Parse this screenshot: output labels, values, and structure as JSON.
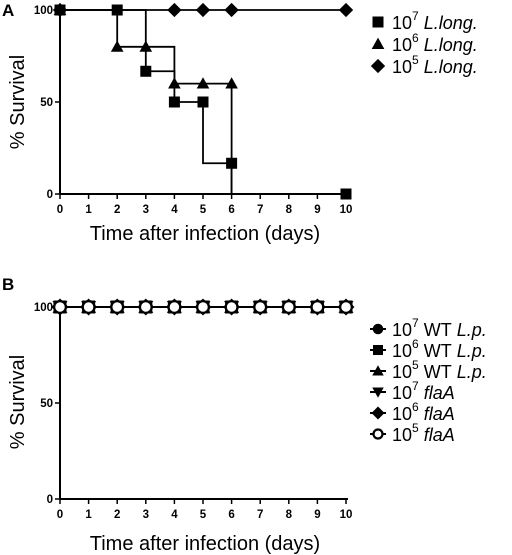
{
  "chart_data": [
    {
      "panel": "A",
      "type": "line",
      "xlabel": "Time after infection (days)",
      "ylabel": "% Survival",
      "xlim": [
        0,
        10
      ],
      "ylim": [
        0,
        100
      ],
      "xticks": [
        0,
        1,
        2,
        3,
        4,
        5,
        6,
        7,
        8,
        9,
        10
      ],
      "yticks": [
        0,
        50,
        100
      ],
      "step": true,
      "legend_position": "right",
      "series": [
        {
          "name": "10^7 L.long.",
          "legend": {
            "base": "10",
            "exp": "7",
            "plain": "",
            "italic": "L.long."
          },
          "marker": "square",
          "x": [
            0,
            2,
            3,
            4,
            5,
            6,
            10
          ],
          "y": [
            100,
            100,
            66.7,
            50,
            50,
            16.7,
            0
          ],
          "steps": [
            [
              0,
              100
            ],
            [
              2,
              100
            ],
            [
              3,
              66.7
            ],
            [
              4,
              50
            ],
            [
              5,
              16.7
            ],
            [
              6,
              0
            ],
            [
              10,
              0
            ]
          ]
        },
        {
          "name": "10^6 L.long.",
          "legend": {
            "base": "10",
            "exp": "6",
            "plain": "",
            "italic": "L.long."
          },
          "marker": "triangle-up",
          "x": [
            0,
            2,
            3,
            4,
            5,
            6
          ],
          "y": [
            100,
            80,
            80,
            60,
            60,
            60
          ],
          "steps": [
            [
              0,
              100
            ],
            [
              2,
              80
            ],
            [
              4,
              60
            ],
            [
              6,
              0
            ]
          ]
        },
        {
          "name": "10^5 L.long.",
          "legend": {
            "base": "10",
            "exp": "5",
            "plain": "",
            "italic": "L.long."
          },
          "marker": "diamond",
          "x": [
            0,
            4,
            5,
            6,
            10
          ],
          "y": [
            100,
            100,
            100,
            100,
            100
          ],
          "steps": [
            [
              0,
              100
            ],
            [
              10,
              100
            ]
          ]
        }
      ]
    },
    {
      "panel": "B",
      "type": "line",
      "xlabel": "Time after infection (days)",
      "ylabel": "% Survival",
      "xlim": [
        0,
        10
      ],
      "ylim": [
        0,
        100
      ],
      "xticks": [
        0,
        1,
        2,
        3,
        4,
        5,
        6,
        7,
        8,
        9,
        10
      ],
      "yticks": [
        0,
        50,
        100
      ],
      "step": true,
      "legend_position": "right",
      "series": [
        {
          "name": "10^7 WT L.p.",
          "legend": {
            "base": "10",
            "exp": "7",
            "plain": " WT ",
            "italic": "L.p."
          },
          "marker": "circle",
          "x": [
            0,
            1,
            2,
            3,
            4,
            5,
            6,
            7,
            8,
            9,
            10
          ],
          "y": [
            100,
            100,
            100,
            100,
            100,
            100,
            100,
            100,
            100,
            100,
            100
          ]
        },
        {
          "name": "10^6 WT L.p.",
          "legend": {
            "base": "10",
            "exp": "6",
            "plain": " WT ",
            "italic": "L.p."
          },
          "marker": "square",
          "x": [
            0,
            1,
            2,
            3,
            4,
            5,
            6,
            7,
            8,
            9,
            10
          ],
          "y": [
            100,
            100,
            100,
            100,
            100,
            100,
            100,
            100,
            100,
            100,
            100
          ]
        },
        {
          "name": "10^5 WT L.p.",
          "legend": {
            "base": "10",
            "exp": "5",
            "plain": " WT ",
            "italic": "L.p."
          },
          "marker": "triangle-up",
          "x": [
            0,
            1,
            2,
            3,
            4,
            5,
            6,
            7,
            8,
            9,
            10
          ],
          "y": [
            100,
            100,
            100,
            100,
            100,
            100,
            100,
            100,
            100,
            100,
            100
          ]
        },
        {
          "name": "10^7 flaA",
          "legend": {
            "base": "10",
            "exp": "7",
            "plain": " ",
            "italic": "flaA"
          },
          "marker": "triangle-down",
          "x": [
            0,
            1,
            2,
            3,
            4,
            5,
            6,
            7,
            8,
            9,
            10
          ],
          "y": [
            100,
            100,
            100,
            100,
            100,
            100,
            100,
            100,
            100,
            100,
            100
          ]
        },
        {
          "name": "10^6 flaA",
          "legend": {
            "base": "10",
            "exp": "6",
            "plain": " ",
            "italic": "flaA"
          },
          "marker": "diamond",
          "x": [
            0,
            1,
            2,
            3,
            4,
            5,
            6,
            7,
            8,
            9,
            10
          ],
          "y": [
            100,
            100,
            100,
            100,
            100,
            100,
            100,
            100,
            100,
            100,
            100
          ]
        },
        {
          "name": "10^5 flaA",
          "legend": {
            "base": "10",
            "exp": "5",
            "plain": " ",
            "italic": "flaA"
          },
          "marker": "open-circle",
          "x": [
            0,
            1,
            2,
            3,
            4,
            5,
            6,
            7,
            8,
            9,
            10
          ],
          "y": [
            100,
            100,
            100,
            100,
            100,
            100,
            100,
            100,
            100,
            100,
            100
          ]
        }
      ]
    }
  ]
}
